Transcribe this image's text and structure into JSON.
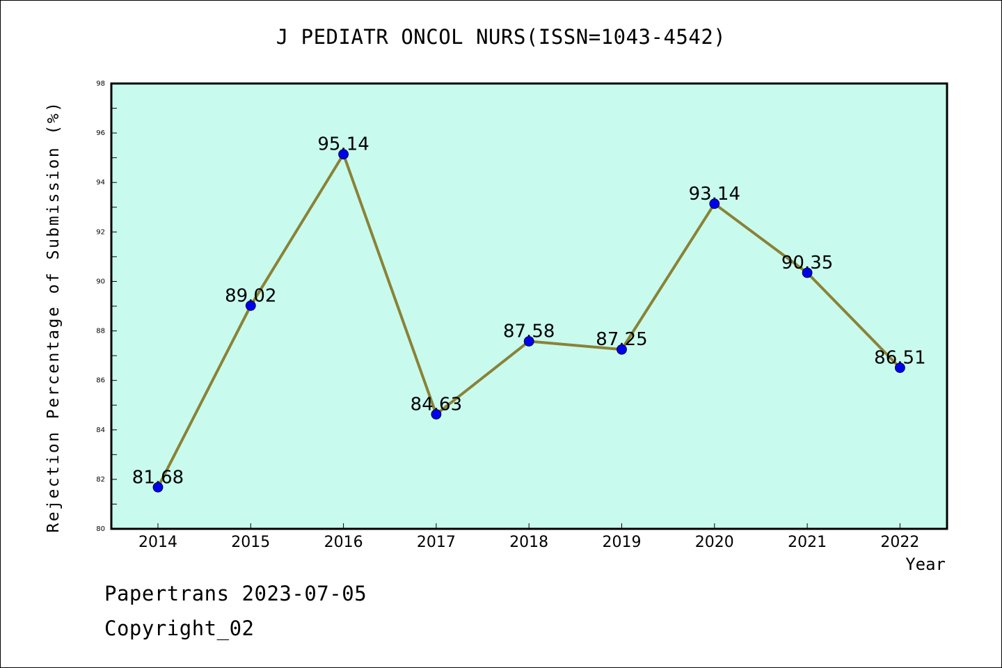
{
  "title": "J PEDIATR ONCOL NURS(ISSN=1043-4542)",
  "footer": {
    "line1": "Papertrans 2023-07-05",
    "line2": "Copyright_02"
  },
  "colors": {
    "plot_bg": "#c8fbee",
    "line": "#8b8236",
    "marker": "#0000ee"
  },
  "chart_data": {
    "type": "line",
    "title": "J PEDIATR ONCOL NURS(ISSN=1043-4542)",
    "xlabel": "Year",
    "ylabel": "Rejection Percentage of Submission (%)",
    "categories": [
      "2014",
      "2015",
      "2016",
      "2017",
      "2018",
      "2019",
      "2020",
      "2021",
      "2022"
    ],
    "values": [
      81.68,
      89.02,
      95.14,
      84.63,
      87.58,
      87.25,
      93.14,
      90.35,
      86.51
    ],
    "data_labels": [
      "81.68",
      "89.02",
      "95.14",
      "84.63",
      "87.58",
      "87.25",
      "93.14",
      "90.35",
      "86.51"
    ],
    "ylim": [
      80,
      98
    ],
    "yticks": [
      80,
      82,
      84,
      86,
      88,
      90,
      92,
      94,
      96,
      98
    ],
    "grid": false,
    "legend": "none"
  }
}
